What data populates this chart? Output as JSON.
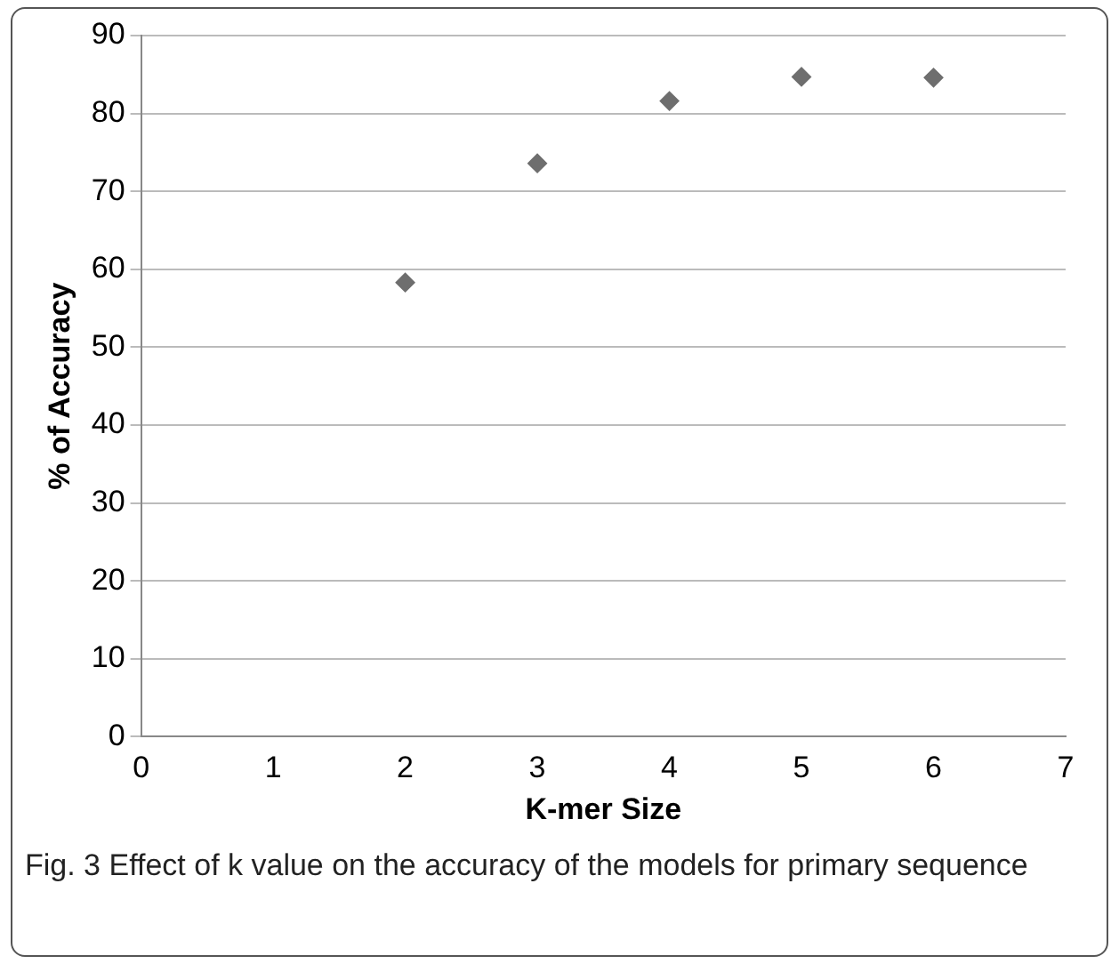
{
  "chart_data": {
    "type": "scatter",
    "xlabel": "K-mer Size",
    "ylabel": "% of Accuracy",
    "x": [
      2,
      3,
      4,
      5,
      6
    ],
    "series": [
      {
        "color": "#6e6e6e",
        "values": [
          58.3,
          73.6,
          81.6,
          84.7,
          84.6
        ]
      }
    ],
    "xlim": [
      0,
      7
    ],
    "xticks": [
      0,
      1,
      2,
      3,
      4,
      5,
      6,
      7
    ],
    "ylim": [
      0,
      90
    ],
    "yticks": [
      0,
      10,
      20,
      30,
      40,
      50,
      60,
      70,
      80,
      90
    ],
    "grid": "y",
    "legend": false,
    "marker": "diamond",
    "annotations": [
      "Fig. 3  Effect of k value on the accuracy of the models for primary sequence"
    ]
  }
}
